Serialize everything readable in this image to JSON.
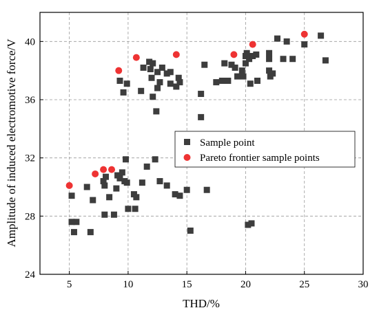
{
  "chart_data": {
    "type": "scatter",
    "title": "",
    "xlabel": "THD/%",
    "ylabel": "Amplitude of induced electromotive force/V",
    "xlim": [
      2.5,
      30
    ],
    "ylim": [
      24,
      42
    ],
    "xticks": [
      5,
      10,
      15,
      20,
      25,
      30
    ],
    "yticks": [
      24,
      28,
      32,
      36,
      40
    ],
    "grid": true,
    "legend_position": "center-right",
    "series": [
      {
        "name": "Sample point",
        "marker": "square",
        "color": "#3d3d3d",
        "points": [
          [
            5.2,
            29.4
          ],
          [
            5.2,
            27.6
          ],
          [
            5.4,
            26.9
          ],
          [
            5.6,
            27.6
          ],
          [
            6.5,
            30.0
          ],
          [
            6.8,
            26.9
          ],
          [
            7.0,
            29.1
          ],
          [
            7.9,
            30.4
          ],
          [
            8.0,
            30.1
          ],
          [
            8.1,
            30.7
          ],
          [
            8.0,
            28.1
          ],
          [
            8.4,
            29.3
          ],
          [
            8.8,
            28.1
          ],
          [
            9.0,
            29.9
          ],
          [
            9.1,
            30.8
          ],
          [
            9.3,
            30.6
          ],
          [
            9.5,
            31.0
          ],
          [
            9.7,
            30.4
          ],
          [
            9.9,
            30.3
          ],
          [
            9.8,
            31.9
          ],
          [
            10.0,
            28.5
          ],
          [
            10.5,
            29.5
          ],
          [
            10.6,
            28.5
          ],
          [
            10.7,
            29.3
          ],
          [
            11.2,
            30.3
          ],
          [
            11.6,
            31.4
          ],
          [
            12.3,
            31.9
          ],
          [
            12.7,
            30.4
          ],
          [
            13.3,
            30.1
          ],
          [
            14.0,
            29.5
          ],
          [
            14.4,
            29.4
          ],
          [
            15.0,
            29.8
          ],
          [
            15.3,
            27.0
          ],
          [
            16.7,
            29.8
          ],
          [
            9.3,
            37.3
          ],
          [
            9.6,
            36.5
          ],
          [
            9.9,
            37.1
          ],
          [
            11.1,
            36.6
          ],
          [
            11.3,
            38.2
          ],
          [
            11.8,
            38.6
          ],
          [
            11.9,
            38.1
          ],
          [
            12.1,
            38.5
          ],
          [
            12.0,
            37.5
          ],
          [
            12.1,
            36.2
          ],
          [
            12.4,
            35.2
          ],
          [
            12.5,
            36.8
          ],
          [
            12.5,
            37.9
          ],
          [
            12.7,
            37.2
          ],
          [
            12.9,
            38.2
          ],
          [
            13.3,
            37.8
          ],
          [
            13.6,
            37.9
          ],
          [
            13.6,
            37.1
          ],
          [
            14.1,
            36.9
          ],
          [
            14.3,
            37.5
          ],
          [
            14.4,
            37.2
          ],
          [
            16.2,
            36.4
          ],
          [
            16.2,
            34.8
          ],
          [
            16.5,
            38.4
          ],
          [
            17.5,
            37.2
          ],
          [
            18.0,
            37.3
          ],
          [
            18.2,
            38.5
          ],
          [
            18.5,
            37.3
          ],
          [
            18.8,
            38.4
          ],
          [
            19.1,
            38.2
          ],
          [
            19.3,
            37.6
          ],
          [
            19.7,
            38.0
          ],
          [
            19.8,
            37.6
          ],
          [
            20.0,
            39.0
          ],
          [
            20.0,
            38.5
          ],
          [
            20.1,
            39.2
          ],
          [
            20.3,
            38.8
          ],
          [
            20.4,
            37.1
          ],
          [
            20.6,
            39.0
          ],
          [
            20.9,
            39.1
          ],
          [
            21.0,
            37.3
          ],
          [
            22.0,
            39.2
          ],
          [
            22.0,
            38.8
          ],
          [
            22.0,
            38.0
          ],
          [
            22.1,
            37.6
          ],
          [
            22.3,
            37.8
          ],
          [
            22.7,
            40.2
          ],
          [
            23.2,
            38.8
          ],
          [
            23.5,
            40.0
          ],
          [
            24.0,
            38.8
          ],
          [
            25.0,
            39.8
          ],
          [
            26.4,
            40.4
          ],
          [
            26.8,
            38.7
          ],
          [
            20.2,
            27.4
          ],
          [
            20.5,
            27.5
          ]
        ]
      },
      {
        "name": "Pareto frontier sample points",
        "marker": "circle",
        "color": "#ee3333",
        "points": [
          [
            5.0,
            30.1
          ],
          [
            7.2,
            30.9
          ],
          [
            7.9,
            31.2
          ],
          [
            8.6,
            31.2
          ],
          [
            9.2,
            38.0
          ],
          [
            10.7,
            38.9
          ],
          [
            14.1,
            39.1
          ],
          [
            19.0,
            39.1
          ],
          [
            20.6,
            39.8
          ],
          [
            25.0,
            40.5
          ]
        ]
      }
    ]
  }
}
